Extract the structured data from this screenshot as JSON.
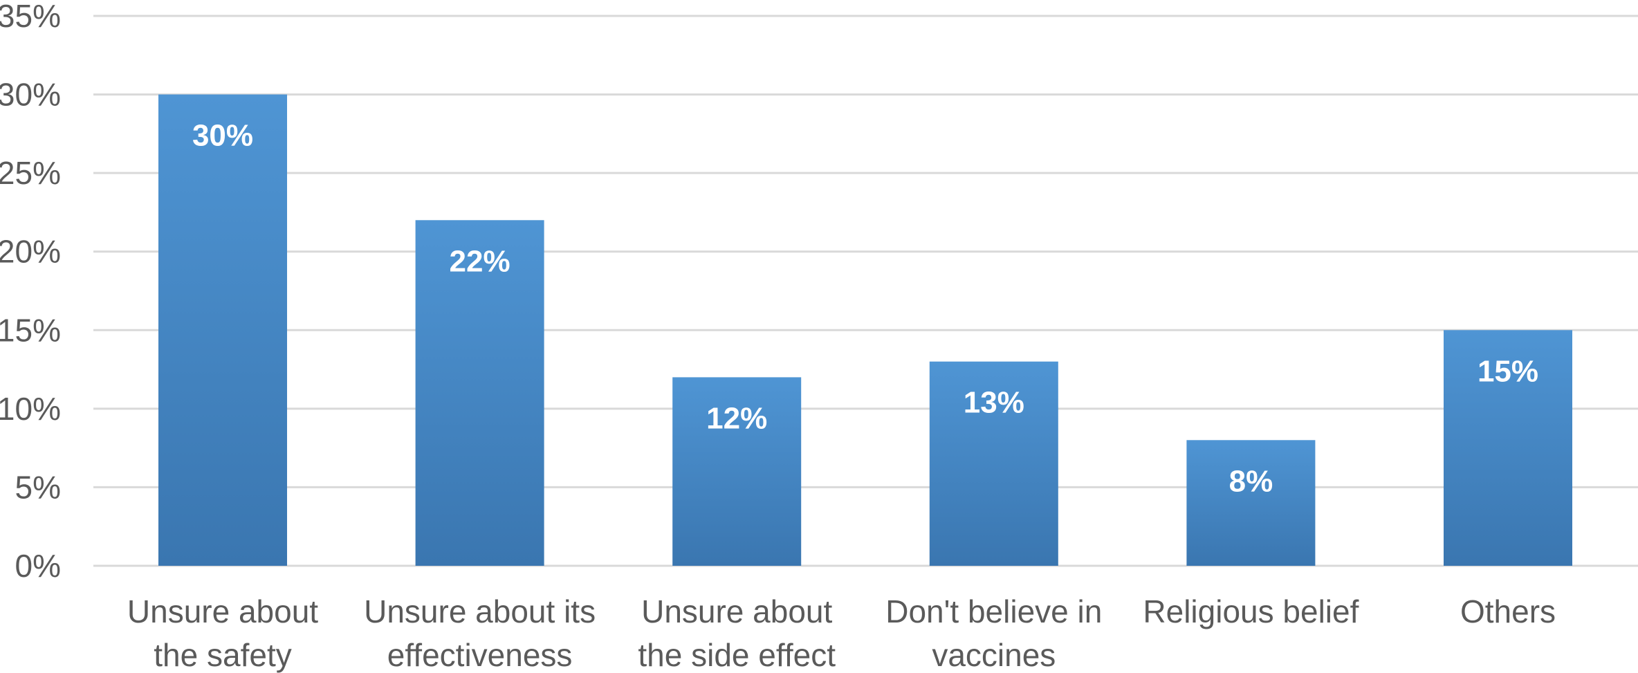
{
  "chart_data": {
    "type": "bar",
    "title": "",
    "xlabel": "",
    "ylabel": "",
    "categories": [
      [
        "Unsure about",
        "the safety"
      ],
      [
        "Unsure about its",
        "effectiveness"
      ],
      [
        "Unsure about",
        "the side effect"
      ],
      [
        "Don't believe in",
        "vaccines"
      ],
      [
        "Religious belief"
      ],
      [
        "Others"
      ]
    ],
    "values": [
      30,
      22,
      12,
      13,
      8,
      15
    ],
    "data_labels": [
      "30%",
      "22%",
      "12%",
      "13%",
      "8%",
      "15%"
    ],
    "ylim": [
      0,
      35
    ],
    "yticks": [
      0,
      5,
      10,
      15,
      20,
      25,
      30,
      35
    ],
    "ytick_labels": [
      "0%",
      "5%",
      "10%",
      "15%",
      "20%",
      "25%",
      "30%",
      "35%"
    ],
    "grid": true,
    "legend": "none",
    "colors": {
      "bar_top": "#4f95d4",
      "bar_bottom": "#3a76b0",
      "grid": "#d9d9d9",
      "text": "#5a5a5a",
      "data_label": "#ffffff"
    }
  }
}
